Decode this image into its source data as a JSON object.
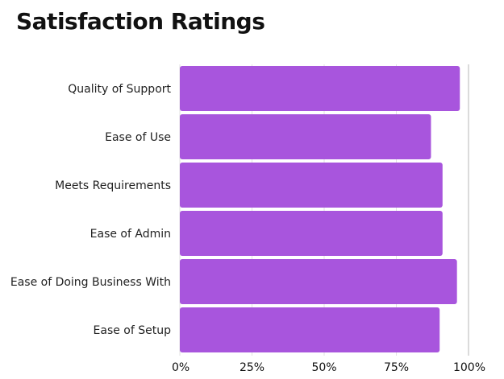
{
  "chart_data": {
    "type": "bar",
    "orientation": "horizontal",
    "title": "Satisfaction Ratings",
    "categories": [
      "Quality of Support",
      "Ease of Use",
      "Meets Requirements",
      "Ease of Admin",
      "Ease of Doing Business With",
      "Ease of Setup"
    ],
    "values": [
      97,
      87,
      91,
      91,
      96,
      90
    ],
    "xlim": [
      0,
      100
    ],
    "ticks": [
      0,
      25,
      50,
      75,
      100
    ],
    "tick_labels": [
      "0%",
      "25%",
      "50%",
      "75%",
      "100%"
    ],
    "grid": true,
    "legend": "none",
    "bar_color": "#a855dd",
    "grid_color": "#e2e2e2"
  }
}
